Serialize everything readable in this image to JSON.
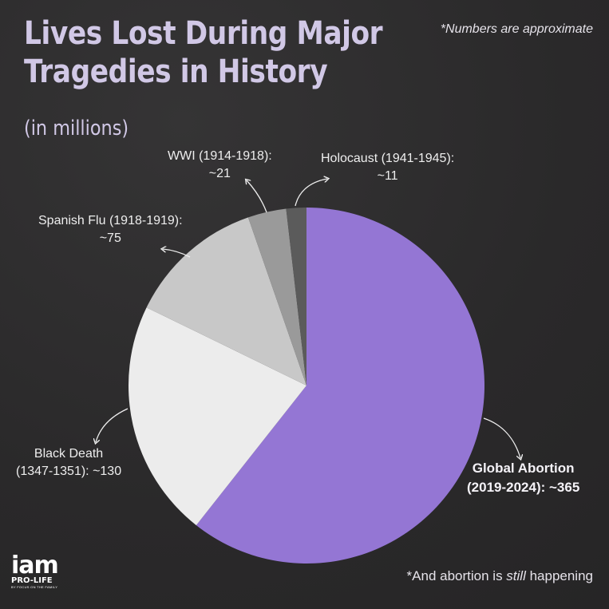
{
  "header": {
    "title": "Lives Lost During Major Tragedies in History",
    "subtitle": "(in millions)",
    "note": "*Numbers are approximate"
  },
  "footer": {
    "note_prefix": "*And abortion is ",
    "note_emphasis": "still",
    "note_suffix": " happening"
  },
  "logo": {
    "main": "iam",
    "tagline": "PRO-LIFE",
    "byline": "BY FOCUS ON THE FAMILY"
  },
  "chart_data": {
    "type": "pie",
    "title": "Lives Lost During Major Tragedies in History",
    "subtitle": "(in millions)",
    "unit": "millions",
    "slices": [
      {
        "category": "Global Abortion",
        "period": "(2019-2024): ~365",
        "value": 365,
        "color": "#9476d4"
      },
      {
        "category": "Black Death",
        "period": "(1347-1351): ~130",
        "value": 130,
        "color": "#ececec"
      },
      {
        "category": "Spanish Flu (1918-1919):",
        "period": "~75",
        "value": 75,
        "color": "#c8c8c8"
      },
      {
        "category": "WWI (1914-1918):",
        "period": "~21",
        "value": 21,
        "color": "#9a9a9a"
      },
      {
        "category": "Holocaust (1941-1945):",
        "period": "~11",
        "value": 11,
        "color": "#5b5b5b"
      }
    ]
  },
  "colors": {
    "background": "#2d2c2d",
    "title": "#d1c8e6",
    "accent": "#9476d4"
  }
}
